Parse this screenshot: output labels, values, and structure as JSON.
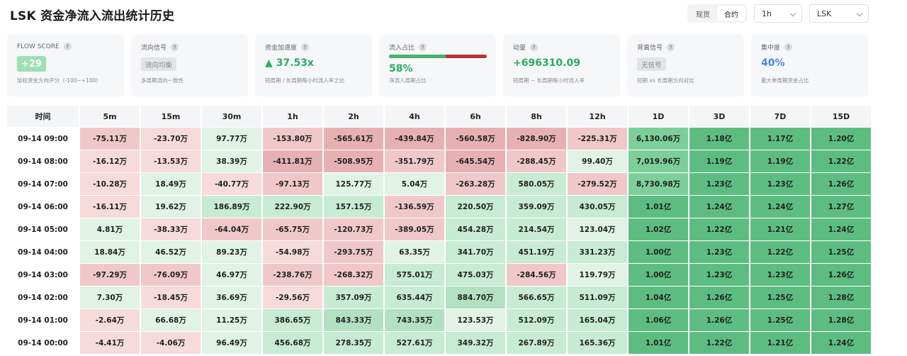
{
  "header": {
    "title": "LSK 资金净流入流出统计历史",
    "tabs": [
      "现货",
      "合约"
    ],
    "active_tab": 1,
    "interval_select": "1h",
    "symbol_select": "LSK"
  },
  "cards": [
    {
      "label": "FLOW SCORE",
      "value": "+29",
      "desc": "加权资金方向评分（-100~+100)"
    },
    {
      "label": "流向信号",
      "value": "流向均衡",
      "desc": "多周期流向一致性"
    },
    {
      "label": "资金加速度",
      "value": "▲ 37.53x",
      "desc": "短周期 / 长周期每小时流入率之比"
    },
    {
      "label": "流入占比",
      "value": "58%",
      "ratio": 0.58,
      "desc": "净流入周期占比"
    },
    {
      "label": "动量",
      "value": "+696310.09",
      "desc": "短周期 − 长周期每小时流入率"
    },
    {
      "label": "背离信号",
      "value": "无信号",
      "desc": "短期 vs 长周期方向对比"
    },
    {
      "label": "集中度",
      "value": "40%",
      "desc": "最大单周期资金占比"
    }
  ],
  "colors": {
    "neg_light": "#f7dada",
    "neg_mid": "#f0c8c9",
    "neg_dark": "#e7b1b3",
    "pos_light": "#e0f3e6",
    "pos_mid": "#c7ebd3",
    "pos_dark": "#b1e1c1",
    "strong1": "#7ccf98",
    "strong2": "#5dbd80"
  },
  "table": {
    "headers": [
      "时间",
      "5m",
      "15m",
      "30m",
      "1h",
      "2h",
      "4h",
      "6h",
      "8h",
      "12h",
      "1D",
      "3D",
      "7D",
      "15D"
    ],
    "rows": [
      {
        "time": "09-14 09:00",
        "cells": [
          "-75.11万",
          "-23.70万",
          "97.77万",
          "-153.80万",
          "-565.61万",
          "-439.84万",
          "-560.58万",
          "-828.90万",
          "-225.31万",
          "6,130.06万",
          "1.18亿",
          "1.17亿",
          "1.20亿"
        ]
      },
      {
        "time": "09-14 08:00",
        "cells": [
          "-16.12万",
          "-13.53万",
          "38.39万",
          "-411.81万",
          "-508.95万",
          "-351.79万",
          "-645.54万",
          "-288.45万",
          "99.40万",
          "7,019.96万",
          "1.19亿",
          "1.19亿",
          "1.22亿"
        ]
      },
      {
        "time": "09-14 07:00",
        "cells": [
          "-10.28万",
          "18.49万",
          "-40.77万",
          "-97.13万",
          "125.77万",
          "5.04万",
          "-263.28万",
          "580.05万",
          "-279.52万",
          "8,730.98万",
          "1.23亿",
          "1.23亿",
          "1.26亿"
        ]
      },
      {
        "time": "09-14 06:00",
        "cells": [
          "-16.11万",
          "19.62万",
          "186.89万",
          "222.90万",
          "157.15万",
          "-136.59万",
          "220.50万",
          "359.09万",
          "430.05万",
          "1.01亿",
          "1.24亿",
          "1.24亿",
          "1.27亿"
        ]
      },
      {
        "time": "09-14 05:00",
        "cells": [
          "4.81万",
          "-38.33万",
          "-64.04万",
          "-65.75万",
          "-120.73万",
          "-389.05万",
          "454.28万",
          "214.54万",
          "123.04万",
          "1.02亿",
          "1.22亿",
          "1.21亿",
          "1.24亿"
        ]
      },
      {
        "time": "09-14 04:00",
        "cells": [
          "18.84万",
          "46.52万",
          "89.23万",
          "-54.98万",
          "-293.75万",
          "63.35万",
          "341.70万",
          "451.19万",
          "331.23万",
          "1.00亿",
          "1.23亿",
          "1.22亿",
          "1.25亿"
        ]
      },
      {
        "time": "09-14 03:00",
        "cells": [
          "-97.29万",
          "-76.09万",
          "46.97万",
          "-238.76万",
          "-268.32万",
          "575.01万",
          "475.03万",
          "-284.56万",
          "119.79万",
          "1.00亿",
          "1.23亿",
          "1.23亿",
          "1.26亿"
        ]
      },
      {
        "time": "09-14 02:00",
        "cells": [
          "7.30万",
          "-18.45万",
          "36.69万",
          "-29.56万",
          "357.09万",
          "635.44万",
          "884.70万",
          "566.65万",
          "511.09万",
          "1.04亿",
          "1.26亿",
          "1.25亿",
          "1.28亿"
        ]
      },
      {
        "time": "09-14 01:00",
        "cells": [
          "-2.64万",
          "66.68万",
          "11.25万",
          "386.65万",
          "843.33万",
          "743.35万",
          "123.53万",
          "512.09万",
          "165.04万",
          "1.06亿",
          "1.26亿",
          "1.25亿",
          "1.28亿"
        ]
      },
      {
        "time": "09-14 00:00",
        "cells": [
          "-4.41万",
          "-4.06万",
          "96.49万",
          "456.68万",
          "278.35万",
          "527.61万",
          "349.32万",
          "267.89万",
          "165.36万",
          "1.01亿",
          "1.22亿",
          "1.21亿",
          "1.24亿"
        ]
      }
    ]
  }
}
